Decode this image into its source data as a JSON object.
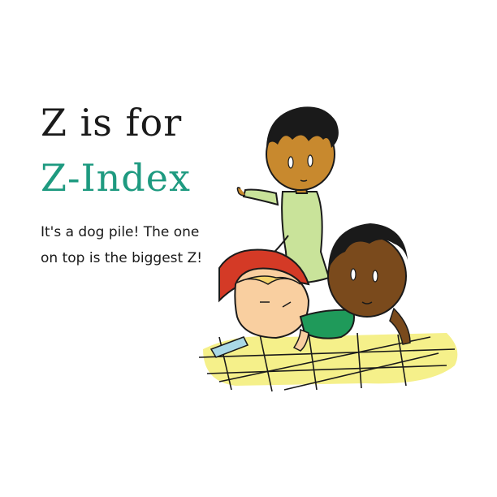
{
  "title": {
    "line1": "Z is for",
    "line2": "Z-Index"
  },
  "caption": {
    "line1": "It's a dog pile! The one",
    "line2": "on top is the biggest Z!"
  },
  "colors": {
    "accent": "#1e9a80",
    "text": "#1a1a1a",
    "floor": "#f5f08a",
    "hat": "#d43a26",
    "shirt_light": "#c9e39a",
    "shirt_green": "#1f9a5a",
    "skin_light": "#f9cfa0",
    "skin_medium": "#c8892e",
    "skin_dark": "#7a4a1c",
    "hair_blonde": "#f4d36a"
  }
}
